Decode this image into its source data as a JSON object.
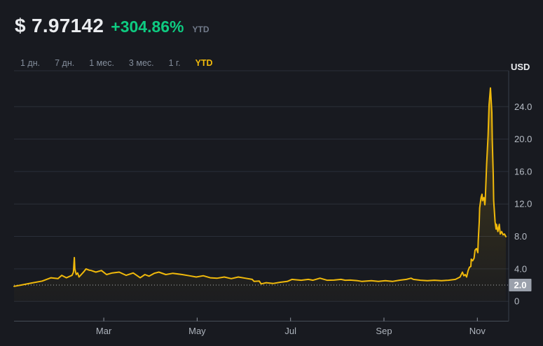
{
  "header": {
    "price": "$ 7.97142",
    "change": "+304.86%",
    "period": "YTD"
  },
  "range_selector": {
    "items": [
      {
        "label": "1 дн.",
        "active": false
      },
      {
        "label": "7 дн.",
        "active": false
      },
      {
        "label": "1 мес.",
        "active": false
      },
      {
        "label": "3 мес.",
        "active": false
      },
      {
        "label": "1 г.",
        "active": false
      },
      {
        "label": "YTD",
        "active": true
      }
    ]
  },
  "axis": {
    "unit": "USD",
    "current_level_label": "2.0"
  },
  "colors": {
    "background": "#181A20",
    "accent_yellow": "#F0B90B",
    "positive_green": "#0ECB81",
    "text_primary": "#EAECEF",
    "text_secondary": "#848E9C",
    "tick_label": "#B7BDC6",
    "grid": "#2A2F39",
    "axis_line": "#474D57",
    "badge_bg": "#9BA1AC"
  },
  "chart_data": {
    "type": "line",
    "title": "",
    "xlabel": "",
    "ylabel": "USD",
    "x_unit": "month of year (0 = Jan 1)",
    "xlim": [
      0.08,
      10.67
    ],
    "ylim": [
      0,
      28.4
    ],
    "grid": true,
    "x_ticks": [
      {
        "m": 2,
        "label": "Mar"
      },
      {
        "m": 4,
        "label": "May"
      },
      {
        "m": 6,
        "label": "Jul"
      },
      {
        "m": 8,
        "label": "Sep"
      },
      {
        "m": 10,
        "label": "Nov"
      }
    ],
    "y_ticks": [
      {
        "v": 24,
        "label": "24.0"
      },
      {
        "v": 20,
        "label": "20.0"
      },
      {
        "v": 16,
        "label": "16.0"
      },
      {
        "v": 12,
        "label": "12.0"
      },
      {
        "v": 8,
        "label": "8.0"
      },
      {
        "v": 4,
        "label": "4.0"
      },
      {
        "v": 0,
        "label": "0"
      }
    ],
    "reference_level": {
      "v": 2.0,
      "label": "2.0"
    },
    "series": [
      {
        "name": "price-usd-ytd",
        "color": "#F0B90B",
        "last_value": 7.97142,
        "points": [
          [
            0.08,
            1.85
          ],
          [
            0.23,
            2.0
          ],
          [
            0.45,
            2.25
          ],
          [
            0.68,
            2.5
          ],
          [
            0.87,
            2.9
          ],
          [
            1.02,
            2.8
          ],
          [
            1.1,
            3.2
          ],
          [
            1.2,
            2.9
          ],
          [
            1.32,
            3.2
          ],
          [
            1.35,
            3.6
          ],
          [
            1.37,
            5.4
          ],
          [
            1.38,
            4.0
          ],
          [
            1.41,
            3.3
          ],
          [
            1.44,
            3.5
          ],
          [
            1.47,
            3.0
          ],
          [
            1.58,
            3.7
          ],
          [
            1.62,
            4.0
          ],
          [
            1.68,
            3.85
          ],
          [
            1.73,
            3.8
          ],
          [
            1.83,
            3.6
          ],
          [
            1.95,
            3.8
          ],
          [
            2.06,
            3.3
          ],
          [
            2.18,
            3.5
          ],
          [
            2.33,
            3.6
          ],
          [
            2.48,
            3.2
          ],
          [
            2.63,
            3.5
          ],
          [
            2.78,
            2.9
          ],
          [
            2.88,
            3.3
          ],
          [
            2.97,
            3.1
          ],
          [
            3.08,
            3.45
          ],
          [
            3.18,
            3.6
          ],
          [
            3.33,
            3.3
          ],
          [
            3.48,
            3.45
          ],
          [
            3.68,
            3.3
          ],
          [
            3.83,
            3.15
          ],
          [
            3.98,
            3.0
          ],
          [
            4.13,
            3.15
          ],
          [
            4.28,
            2.9
          ],
          [
            4.43,
            2.85
          ],
          [
            4.58,
            3.0
          ],
          [
            4.73,
            2.8
          ],
          [
            4.88,
            3.0
          ],
          [
            5.03,
            2.85
          ],
          [
            5.18,
            2.7
          ],
          [
            5.22,
            2.45
          ],
          [
            5.33,
            2.5
          ],
          [
            5.37,
            2.15
          ],
          [
            5.48,
            2.3
          ],
          [
            5.63,
            2.2
          ],
          [
            5.78,
            2.35
          ],
          [
            5.93,
            2.45
          ],
          [
            6.03,
            2.7
          ],
          [
            6.12,
            2.65
          ],
          [
            6.23,
            2.6
          ],
          [
            6.38,
            2.7
          ],
          [
            6.48,
            2.6
          ],
          [
            6.63,
            2.85
          ],
          [
            6.78,
            2.6
          ],
          [
            6.93,
            2.62
          ],
          [
            7.08,
            2.7
          ],
          [
            7.17,
            2.6
          ],
          [
            7.28,
            2.62
          ],
          [
            7.43,
            2.55
          ],
          [
            7.53,
            2.45
          ],
          [
            7.73,
            2.55
          ],
          [
            7.88,
            2.45
          ],
          [
            8.03,
            2.55
          ],
          [
            8.18,
            2.45
          ],
          [
            8.33,
            2.6
          ],
          [
            8.48,
            2.7
          ],
          [
            8.58,
            2.85
          ],
          [
            8.63,
            2.7
          ],
          [
            8.78,
            2.6
          ],
          [
            8.93,
            2.55
          ],
          [
            9.08,
            2.6
          ],
          [
            9.23,
            2.55
          ],
          [
            9.38,
            2.6
          ],
          [
            9.53,
            2.7
          ],
          [
            9.63,
            3.0
          ],
          [
            9.68,
            3.6
          ],
          [
            9.71,
            3.15
          ],
          [
            9.74,
            3.3
          ],
          [
            9.77,
            3.0
          ],
          [
            9.8,
            3.75
          ],
          [
            9.83,
            4.2
          ],
          [
            9.86,
            4.3
          ],
          [
            9.87,
            5.2
          ],
          [
            9.9,
            5.0
          ],
          [
            9.93,
            5.3
          ],
          [
            9.95,
            6.3
          ],
          [
            9.98,
            6.5
          ],
          [
            10.01,
            6.0
          ],
          [
            10.02,
            7.5
          ],
          [
            10.04,
            9.8
          ],
          [
            10.05,
            11.5
          ],
          [
            10.08,
            12.8
          ],
          [
            10.1,
            13.2
          ],
          [
            10.11,
            12.4
          ],
          [
            10.14,
            12.8
          ],
          [
            10.16,
            11.9
          ],
          [
            10.17,
            12.5
          ],
          [
            10.2,
            17.0
          ],
          [
            10.23,
            20.4
          ],
          [
            10.25,
            24.2
          ],
          [
            10.28,
            26.3
          ],
          [
            10.31,
            23.3
          ],
          [
            10.32,
            19.9
          ],
          [
            10.34,
            15.5
          ],
          [
            10.35,
            12.4
          ],
          [
            10.37,
            10.6
          ],
          [
            10.38,
            9.8
          ],
          [
            10.4,
            8.9
          ],
          [
            10.41,
            9.5
          ],
          [
            10.44,
            8.6
          ],
          [
            10.47,
            9.5
          ],
          [
            10.49,
            8.3
          ],
          [
            10.52,
            8.6
          ],
          [
            10.55,
            8.2
          ],
          [
            10.58,
            8.3
          ],
          [
            10.61,
            7.97
          ]
        ]
      }
    ],
    "legend": null
  }
}
